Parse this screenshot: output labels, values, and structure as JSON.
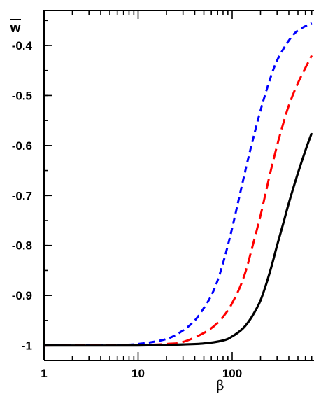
{
  "chart_data": {
    "type": "line",
    "xlabel": "β",
    "ylabel": "w",
    "x_scale": "log",
    "xlim": [
      1,
      700
    ],
    "ylim": [
      -1.03,
      -0.33
    ],
    "x_ticks": [
      {
        "value": 1,
        "label": "1"
      },
      {
        "value": 10,
        "label": "10"
      },
      {
        "value": 100,
        "label": "100"
      }
    ],
    "y_ticks": [
      {
        "value": -0.4,
        "label": "-0.4"
      },
      {
        "value": -0.5,
        "label": "-0.5"
      },
      {
        "value": -0.6,
        "label": "-0.6"
      },
      {
        "value": -0.7,
        "label": "-0.7"
      },
      {
        "value": -0.8,
        "label": "-0.8"
      },
      {
        "value": -0.9,
        "label": "-0.9"
      },
      {
        "value": -1,
        "label": "-1"
      }
    ],
    "grid": false,
    "legend": "none",
    "series": [
      {
        "color": "#0000ff",
        "style": "short-dash",
        "x": [
          1,
          5,
          10,
          20,
          30,
          40,
          50,
          60,
          70,
          80,
          90,
          100,
          120,
          140,
          160,
          200,
          250,
          300,
          400,
          500,
          700
        ],
        "y": [
          -1.0,
          -0.999,
          -0.997,
          -0.987,
          -0.97,
          -0.95,
          -0.925,
          -0.9,
          -0.87,
          -0.835,
          -0.8,
          -0.765,
          -0.7,
          -0.645,
          -0.6,
          -0.53,
          -0.47,
          -0.43,
          -0.39,
          -0.37,
          -0.355
        ]
      },
      {
        "color": "#ff0000",
        "style": "long-dash",
        "x": [
          1,
          10,
          20,
          30,
          50,
          70,
          90,
          100,
          120,
          140,
          160,
          200,
          250,
          300,
          350,
          400,
          500,
          700
        ],
        "y": [
          -1.0,
          -0.999,
          -0.997,
          -0.993,
          -0.975,
          -0.955,
          -0.93,
          -0.915,
          -0.885,
          -0.85,
          -0.81,
          -0.74,
          -0.66,
          -0.6,
          -0.555,
          -0.52,
          -0.475,
          -0.42
        ]
      },
      {
        "color": "#000000",
        "style": "solid",
        "x": [
          1,
          10,
          30,
          50,
          80,
          100,
          130,
          160,
          200,
          250,
          300,
          350,
          400,
          500,
          600,
          700
        ],
        "y": [
          -1.0,
          -1.0,
          -0.998,
          -0.996,
          -0.99,
          -0.982,
          -0.966,
          -0.944,
          -0.91,
          -0.855,
          -0.8,
          -0.755,
          -0.715,
          -0.655,
          -0.61,
          -0.575
        ]
      }
    ]
  }
}
